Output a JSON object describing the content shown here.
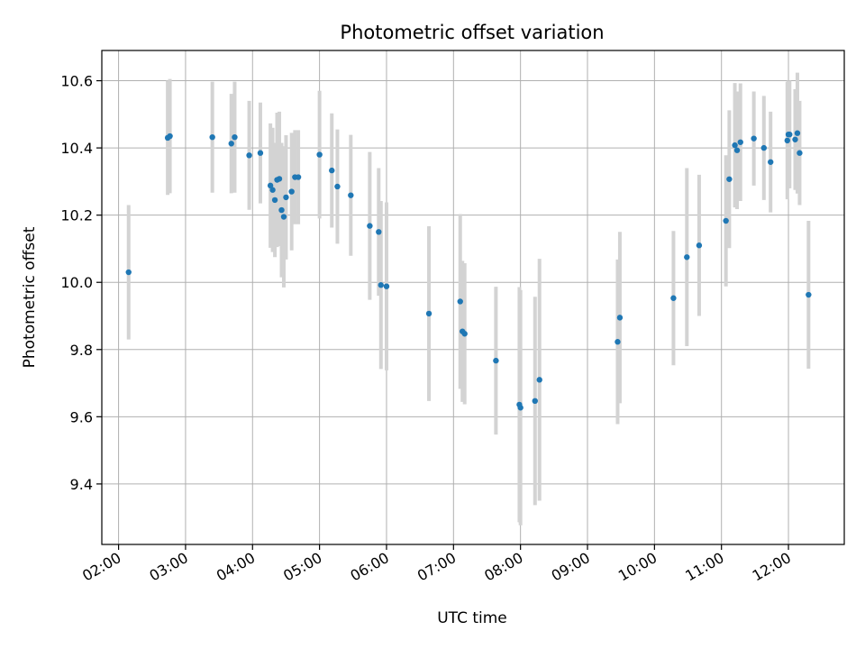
{
  "chart_data": {
    "type": "scatter",
    "title": "Photometric offset variation",
    "xlabel": "UTC time",
    "ylabel": "Photometric offset",
    "xlim": [
      "01:45",
      "12:50"
    ],
    "ylim": [
      9.22,
      10.69
    ],
    "x_ticks": [
      "02:00",
      "03:00",
      "04:00",
      "05:00",
      "06:00",
      "07:00",
      "08:00",
      "09:00",
      "10:00",
      "11:00",
      "12:00"
    ],
    "y_ticks": [
      9.4,
      9.6,
      9.8,
      10.0,
      10.2,
      10.4,
      10.6
    ],
    "y_tick_labels": [
      "9.4",
      "9.6",
      "9.8",
      "10.0",
      "10.2",
      "10.4",
      "10.6"
    ],
    "grid": true,
    "colors": {
      "points": "#1f77b4",
      "error_bars": "#d3d3d3",
      "grid": "#b0b0b0"
    },
    "series": [
      {
        "x": [
          "02:09",
          "02:44",
          "02:46",
          "03:24",
          "03:41",
          "03:44",
          "03:57",
          "04:07",
          "04:16",
          "04:18",
          "04:20",
          "04:22",
          "04:24",
          "04:26",
          "04:28",
          "04:30",
          "04:35",
          "04:38",
          "04:41",
          "05:00",
          "05:11",
          "05:16",
          "05:28",
          "05:45",
          "05:53",
          "05:55",
          "06:00",
          "06:38",
          "07:06",
          "07:08",
          "07:10",
          "07:38",
          "07:59",
          "08:00",
          "08:13",
          "08:17",
          "09:27",
          "09:29",
          "10:17",
          "10:29",
          "10:40",
          "11:04",
          "11:07",
          "11:12",
          "11:14",
          "11:17",
          "11:29",
          "11:38",
          "11:44",
          "11:59",
          "12:00",
          "12:01",
          "12:06",
          "12:08",
          "12:10",
          "12:18"
        ],
        "y": [
          10.03,
          10.43,
          10.435,
          10.432,
          10.413,
          10.432,
          10.378,
          10.385,
          10.288,
          10.275,
          10.245,
          10.305,
          10.308,
          10.215,
          10.195,
          10.253,
          10.27,
          10.313,
          10.313,
          10.38,
          10.333,
          10.285,
          10.259,
          10.168,
          10.15,
          9.992,
          9.988,
          9.907,
          9.943,
          9.854,
          9.847,
          9.767,
          9.636,
          9.627,
          9.647,
          9.71,
          9.823,
          9.895,
          9.953,
          10.075,
          10.11,
          10.183,
          10.307,
          10.408,
          10.393,
          10.417,
          10.428,
          10.4,
          10.358,
          10.422,
          10.44,
          10.44,
          10.425,
          10.444,
          10.385,
          9.963
        ],
        "err": [
          0.2,
          0.17,
          0.17,
          0.165,
          0.148,
          0.165,
          0.162,
          0.15,
          0.185,
          0.185,
          0.17,
          0.2,
          0.2,
          0.2,
          0.21,
          0.185,
          0.175,
          0.14,
          0.14,
          0.19,
          0.17,
          0.17,
          0.18,
          0.22,
          0.19,
          0.25,
          0.25,
          0.26,
          0.26,
          0.21,
          0.21,
          0.22,
          0.35,
          0.35,
          0.31,
          0.36,
          0.245,
          0.255,
          0.2,
          0.265,
          0.21,
          0.195,
          0.205,
          0.185,
          0.175,
          0.175,
          0.14,
          0.155,
          0.15,
          0.175,
          0.16,
          0.16,
          0.15,
          0.18,
          0.155,
          0.22
        ]
      }
    ]
  }
}
